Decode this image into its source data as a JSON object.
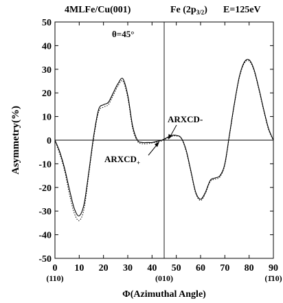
{
  "header": {
    "sample": "4MLFe/Cu(001)",
    "level_main": "Fe (2p",
    "level_sub": "3/2",
    "level_close": ")",
    "energy": "E=125eV"
  },
  "chart_data": {
    "type": "line",
    "xlabel": "Φ(Azimuthal Angle)",
    "ylabel": "Asymmetry(%)",
    "xlim": [
      0,
      90
    ],
    "ylim": [
      -50,
      50
    ],
    "x_ticks": [
      0,
      10,
      20,
      30,
      40,
      50,
      60,
      70,
      80,
      90
    ],
    "y_ticks": [
      50,
      40,
      30,
      20,
      10,
      0,
      -10,
      -20,
      -30,
      -40,
      -50
    ],
    "direction_labels": [
      {
        "x": 0,
        "text": "(110)",
        "overline": false
      },
      {
        "x": 45,
        "text": "(010)",
        "overline": false
      },
      {
        "x": 90,
        "text": "(1̄10)",
        "overline": false
      }
    ],
    "reference_lines": {
      "horizontal_y": 0,
      "vertical_x": 45
    },
    "annotations": {
      "theta": "θ=45°",
      "minus": "ARXCD-",
      "plus_main": "ARXCD",
      "plus_sub": "+"
    },
    "series": [
      {
        "style": "solid",
        "x": [
          0,
          2,
          4,
          6,
          8,
          10,
          12,
          14,
          16,
          18,
          20,
          22,
          24,
          26,
          28,
          30,
          32,
          34,
          36,
          38,
          40,
          42,
          44,
          46,
          48,
          50,
          52,
          54,
          56,
          58,
          60,
          62,
          64,
          66,
          68,
          70,
          72,
          74,
          76,
          78,
          80,
          82,
          84,
          86,
          88,
          90
        ],
        "values": [
          0,
          -5,
          -12,
          -21,
          -29,
          -32,
          -27,
          -13,
          2,
          13,
          15,
          16,
          20,
          24,
          26,
          19,
          6,
          0,
          -1,
          -1,
          -1,
          -0.5,
          0,
          1,
          2,
          2,
          1,
          -4,
          -13,
          -22,
          -25,
          -22,
          -17,
          -16,
          -15,
          -10,
          3,
          16,
          27,
          33,
          34,
          30,
          22,
          13,
          5,
          0
        ]
      },
      {
        "style": "dotted",
        "x": [
          0,
          2,
          4,
          6,
          8,
          10,
          12,
          14,
          16,
          18,
          20,
          22,
          24,
          26,
          28,
          30,
          32,
          34,
          36,
          38,
          40,
          42,
          44,
          46,
          48,
          50,
          52,
          54,
          56,
          58,
          60,
          62,
          64,
          66,
          68,
          70,
          72,
          74,
          76,
          78,
          80,
          82,
          84,
          86,
          88,
          90
        ],
        "values": [
          0,
          -6,
          -13,
          -23,
          -31,
          -34,
          -29,
          -14,
          1,
          12,
          14,
          15,
          19,
          23,
          25,
          18,
          5,
          -0.5,
          -1.5,
          -1.5,
          -1.2,
          -0.8,
          -0.3,
          0.7,
          1.6,
          1.8,
          0.8,
          -4.5,
          -13.5,
          -22.5,
          -25.5,
          -22.5,
          -17.5,
          -16.5,
          -15.5,
          -10.5,
          2.5,
          15.5,
          26.5,
          32.5,
          33.5,
          29.5,
          21.5,
          12.5,
          4.5,
          0
        ]
      }
    ]
  }
}
